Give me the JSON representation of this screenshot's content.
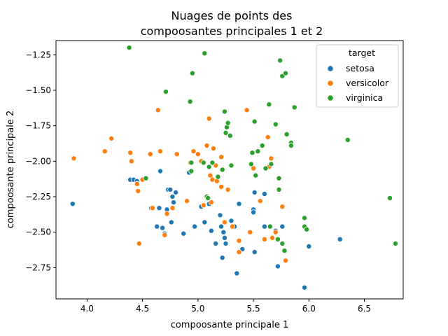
{
  "chart_data": {
    "type": "scatter",
    "title_lines": [
      "Nuages de points des",
      "compoosantes principales 1 et 2"
    ],
    "xlabel": "compoosante principale 1",
    "ylabel": "compoosante principale 2",
    "xlim": [
      3.72,
      6.85
    ],
    "ylim": [
      -2.97,
      -1.15
    ],
    "xticks": [
      4.0,
      4.5,
      5.0,
      5.5,
      6.0,
      6.5
    ],
    "xtick_labels": [
      "4.0",
      "4.5",
      "5.0",
      "5.5",
      "6.0",
      "6.5"
    ],
    "yticks": [
      -1.25,
      -1.5,
      -1.75,
      -2.0,
      -2.25,
      -2.5,
      -2.75
    ],
    "ytick_labels": [
      "−1.25",
      "−1.50",
      "−1.75",
      "−2.00",
      "−2.25",
      "−2.50",
      "−2.75"
    ],
    "grid": false,
    "legend": {
      "title": "target",
      "position": "top-right"
    },
    "series": [
      {
        "name": "setosa",
        "color": "#1f77b4",
        "points": [
          [
            3.87,
            -2.3
          ],
          [
            4.39,
            -2.13
          ],
          [
            4.42,
            -2.13
          ],
          [
            4.45,
            -2.14
          ],
          [
            4.58,
            -2.33
          ],
          [
            4.63,
            -2.46
          ],
          [
            4.65,
            -2.33
          ],
          [
            4.66,
            -2.07
          ],
          [
            4.68,
            -2.47
          ],
          [
            4.7,
            -2.51
          ],
          [
            4.72,
            -2.34
          ],
          [
            4.73,
            -2.2
          ],
          [
            4.75,
            -2.2
          ],
          [
            4.76,
            -2.43
          ],
          [
            4.77,
            -2.25
          ],
          [
            4.78,
            -2.29
          ],
          [
            4.8,
            -2.22
          ],
          [
            4.87,
            -2.51
          ],
          [
            4.92,
            -2.08
          ],
          [
            4.97,
            -2.46
          ],
          [
            5.03,
            -2.32
          ],
          [
            5.06,
            -2.43
          ],
          [
            5.1,
            -2.3
          ],
          [
            5.12,
            -2.49
          ],
          [
            5.16,
            -2.58
          ],
          [
            5.2,
            -2.38
          ],
          [
            5.21,
            -2.46
          ],
          [
            5.23,
            -2.5
          ],
          [
            5.24,
            -2.54
          ],
          [
            5.25,
            -2.58
          ],
          [
            5.22,
            -2.68
          ],
          [
            5.3,
            -2.42
          ],
          [
            5.33,
            -2.46
          ],
          [
            5.35,
            -2.79
          ],
          [
            5.37,
            -2.3
          ],
          [
            5.4,
            -2.62
          ],
          [
            5.5,
            -2.34
          ],
          [
            5.5,
            -2.36
          ],
          [
            5.51,
            -2.22
          ],
          [
            5.51,
            -2.64
          ],
          [
            5.6,
            -2.23
          ],
          [
            5.6,
            -2.46
          ],
          [
            5.7,
            -2.49
          ],
          [
            5.72,
            -2.74
          ],
          [
            5.76,
            -2.46
          ],
          [
            5.96,
            -2.89
          ],
          [
            6.0,
            -2.6
          ],
          [
            6.28,
            -2.55
          ]
        ]
      },
      {
        "name": "versicolor",
        "color": "#ff7f0e",
        "points": [
          [
            3.88,
            -1.98
          ],
          [
            4.16,
            -1.93
          ],
          [
            4.22,
            -1.84
          ],
          [
            4.39,
            -1.94
          ],
          [
            4.4,
            -2.0
          ],
          [
            4.45,
            -2.16
          ],
          [
            4.46,
            -2.21
          ],
          [
            4.47,
            -2.58
          ],
          [
            4.5,
            -2.13
          ],
          [
            4.57,
            -1.95
          ],
          [
            4.59,
            -2.33
          ],
          [
            4.64,
            -1.64
          ],
          [
            4.66,
            -1.93
          ],
          [
            4.7,
            -2.52
          ],
          [
            4.72,
            -2.37
          ],
          [
            4.77,
            -2.33
          ],
          [
            4.81,
            -1.95
          ],
          [
            4.9,
            -2.28
          ],
          [
            4.93,
            -2.01
          ],
          [
            4.96,
            -1.93
          ],
          [
            5.0,
            -1.95
          ],
          [
            5.03,
            -2.0
          ],
          [
            5.05,
            -2.31
          ],
          [
            5.08,
            -1.89
          ],
          [
            5.1,
            -1.7
          ],
          [
            5.11,
            -2.1
          ],
          [
            5.12,
            -2.29
          ],
          [
            5.13,
            -2.13
          ],
          [
            5.14,
            -1.91
          ],
          [
            5.16,
            -2.03
          ],
          [
            5.17,
            -2.14
          ],
          [
            5.21,
            -2.18
          ],
          [
            5.21,
            -1.97
          ],
          [
            5.24,
            -2.43
          ],
          [
            5.27,
            -2.2
          ],
          [
            5.31,
            -2.46
          ],
          [
            5.37,
            -2.56
          ],
          [
            5.37,
            -2.64
          ],
          [
            5.44,
            -1.64
          ],
          [
            5.47,
            -2.5
          ],
          [
            5.5,
            -2.05
          ],
          [
            5.56,
            -2.28
          ],
          [
            5.6,
            -2.55
          ],
          [
            5.63,
            -1.83
          ],
          [
            5.64,
            -2.04
          ],
          [
            5.66,
            -1.98
          ],
          [
            5.67,
            -2.54
          ],
          [
            5.7,
            -2.5
          ],
          [
            5.76,
            -2.32
          ],
          [
            5.79,
            -2.7
          ]
        ]
      },
      {
        "name": "virginica",
        "color": "#2ca02c",
        "points": [
          [
            4.38,
            -1.2
          ],
          [
            4.53,
            -2.12
          ],
          [
            4.71,
            -1.51
          ],
          [
            4.93,
            -1.58
          ],
          [
            4.94,
            -2.01
          ],
          [
            4.94,
            -2.07
          ],
          [
            4.95,
            -1.38
          ],
          [
            5.05,
            -2.01
          ],
          [
            5.06,
            -1.24
          ],
          [
            5.08,
            -2.25
          ],
          [
            5.09,
            -2.26
          ],
          [
            5.1,
            -2.04
          ],
          [
            5.13,
            -2.01
          ],
          [
            5.18,
            -2.11
          ],
          [
            5.22,
            -2.06
          ],
          [
            5.24,
            -1.65
          ],
          [
            5.25,
            -1.8
          ],
          [
            5.26,
            -1.76
          ],
          [
            5.27,
            -1.73
          ],
          [
            5.29,
            -1.82
          ],
          [
            5.3,
            -2.03
          ],
          [
            5.48,
            -2.02
          ],
          [
            5.49,
            -1.94
          ],
          [
            5.51,
            -1.72
          ],
          [
            5.52,
            -2.1
          ],
          [
            5.54,
            -1.93
          ],
          [
            5.58,
            -1.89
          ],
          [
            5.61,
            -2.05
          ],
          [
            5.64,
            -1.6
          ],
          [
            5.65,
            -2.46
          ],
          [
            5.66,
            -2.02
          ],
          [
            5.7,
            -1.74
          ],
          [
            5.72,
            -2.55
          ],
          [
            5.73,
            -2.2
          ],
          [
            5.73,
            -2.12
          ],
          [
            5.74,
            -1.29
          ],
          [
            5.76,
            -2.58
          ],
          [
            5.76,
            -1.4
          ],
          [
            5.78,
            -2.63
          ],
          [
            5.79,
            -1.38
          ],
          [
            5.8,
            -1.81
          ],
          [
            5.84,
            -1.87
          ],
          [
            5.84,
            -1.89
          ],
          [
            5.87,
            -1.62
          ],
          [
            5.96,
            -2.46
          ],
          [
            5.96,
            -2.4
          ],
          [
            5.98,
            -2.48
          ],
          [
            6.35,
            -1.85
          ],
          [
            6.73,
            -2.26
          ],
          [
            6.78,
            -2.58
          ]
        ]
      }
    ]
  }
}
